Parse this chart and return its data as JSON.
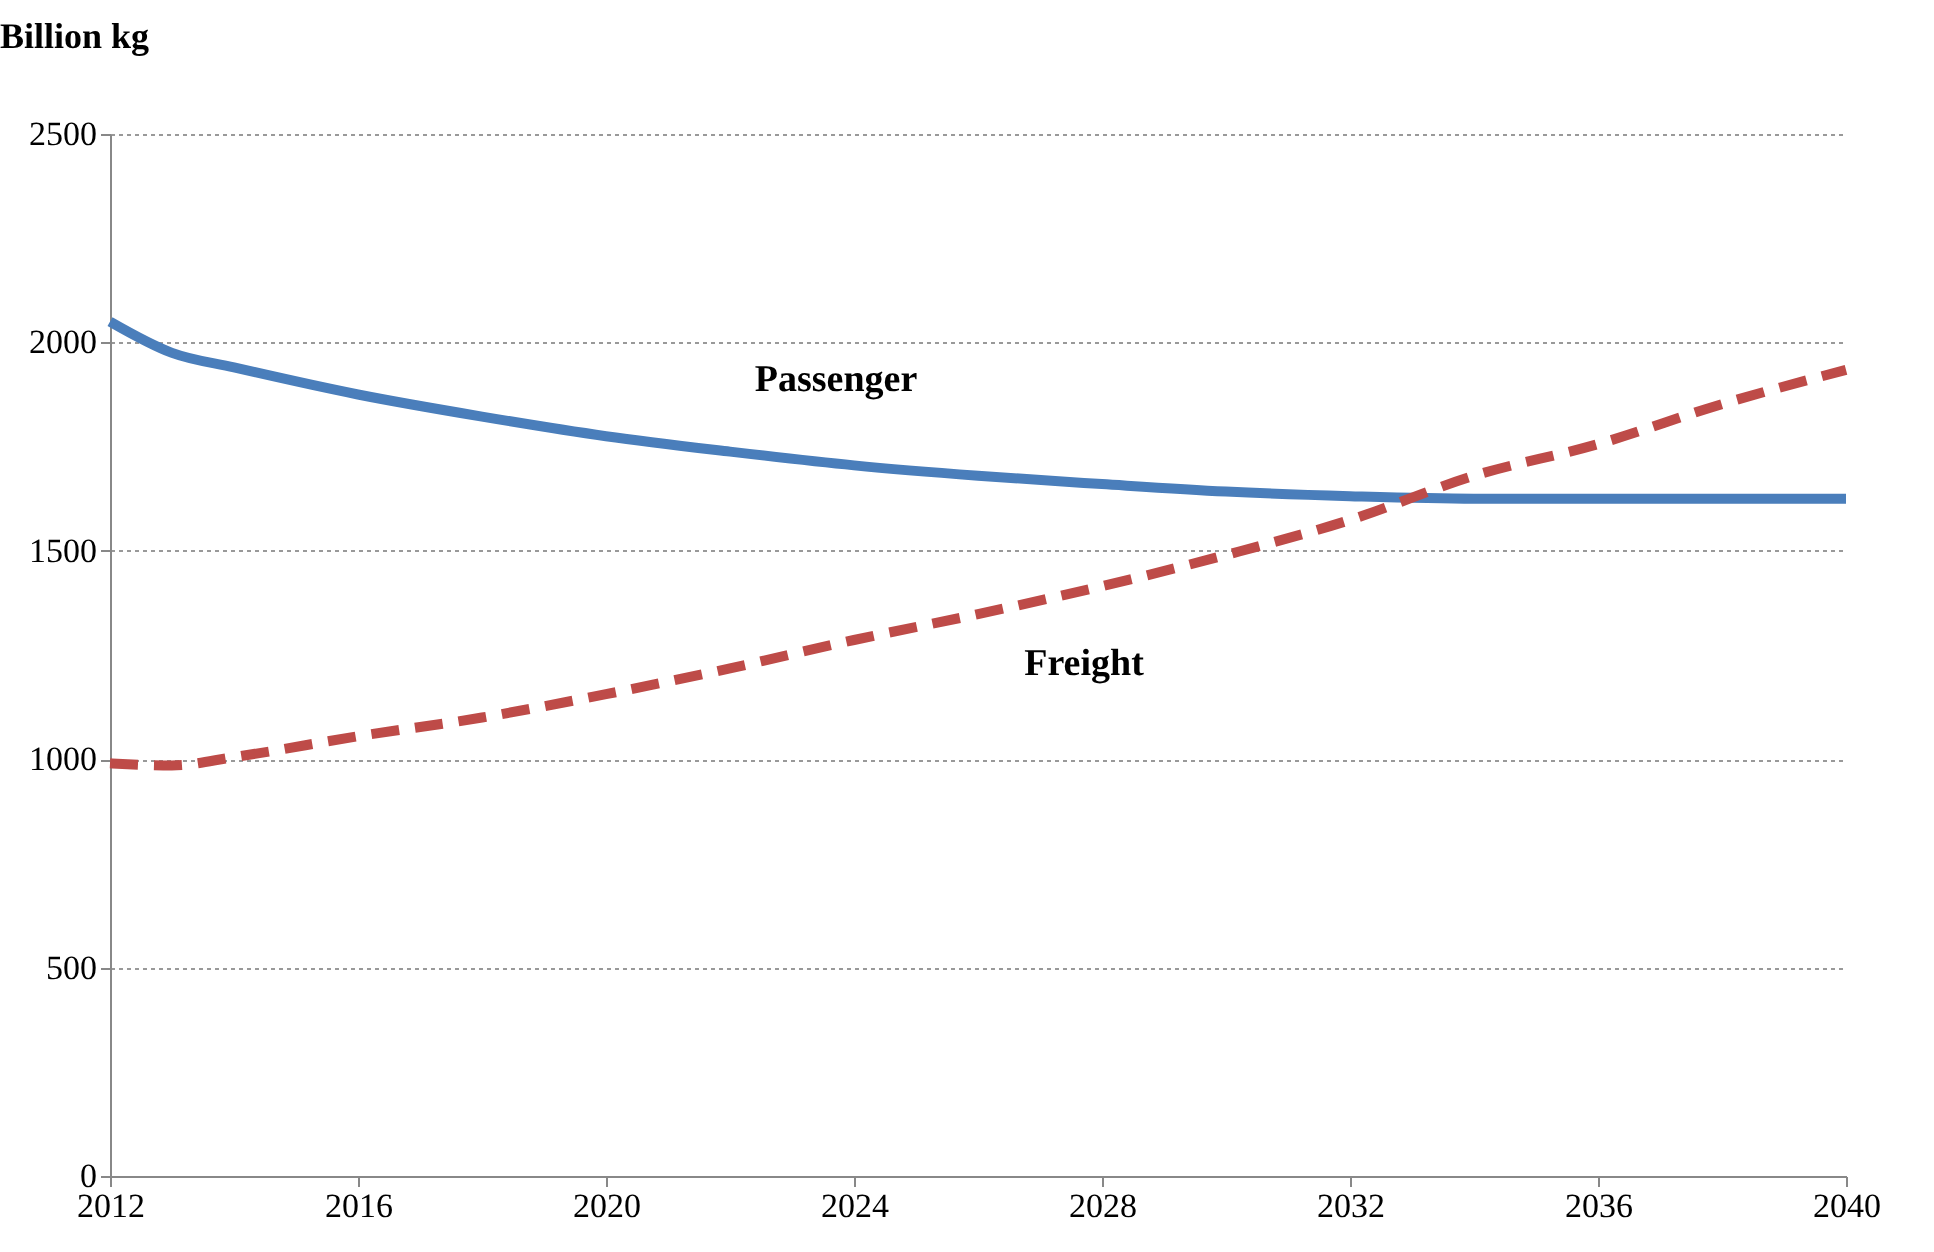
{
  "chart_data": {
    "type": "line",
    "ylabel": "Billion kg",
    "x": [
      2012,
      2013,
      2014,
      2016,
      2018,
      2020,
      2022,
      2024,
      2026,
      2028,
      2030,
      2032,
      2034,
      2036,
      2038,
      2040
    ],
    "xlim": [
      2012,
      2040
    ],
    "xticks": [
      2012,
      2016,
      2020,
      2024,
      2028,
      2032,
      2036,
      2040
    ],
    "ylim": [
      0,
      2500
    ],
    "yticks": [
      0,
      500,
      1000,
      1500,
      2000,
      2500
    ],
    "grid": "y",
    "legend": false,
    "marker": "none",
    "series": [
      {
        "name": "Passenger",
        "color": "#4a7ebb",
        "line_style": "solid",
        "values": [
          2050,
          1975,
          1940,
          1875,
          1822,
          1775,
          1738,
          1705,
          1680,
          1660,
          1642,
          1631,
          1625,
          1625,
          1625,
          1625
        ]
      },
      {
        "name": "Freight",
        "color": "#be4b48",
        "line_style": "dashed",
        "values": [
          990,
          985,
          1005,
          1055,
          1100,
          1156,
          1218,
          1286,
          1348,
          1415,
          1490,
          1574,
          1680,
          1756,
          1852,
          1934
        ]
      }
    ]
  }
}
